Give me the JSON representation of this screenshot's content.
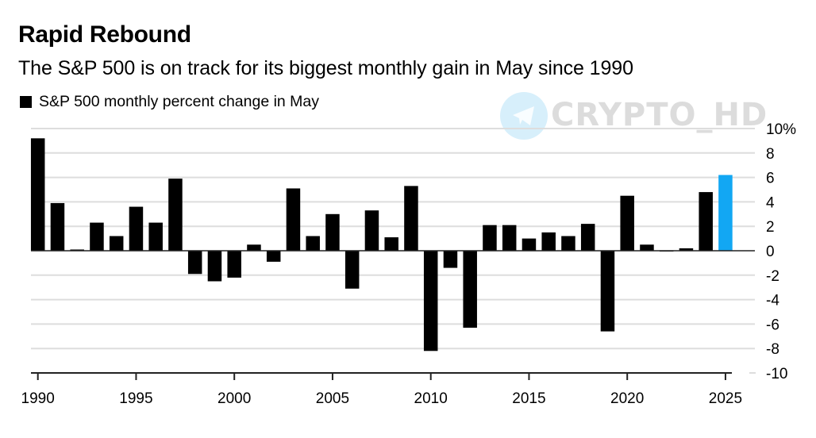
{
  "header": {
    "title": "Rapid Rebound",
    "subtitle": "The S&P 500 is on track for its biggest monthly gain in May since 1990",
    "legend_label": "S&P 500 monthly percent change in May"
  },
  "watermark": {
    "text": "CRYPTO_HD",
    "icon": "telegram-icon"
  },
  "colors": {
    "bar_default": "#000000",
    "bar_highlight": "#12a7f3",
    "grid": "#dddddd",
    "axis": "#222222"
  },
  "chart_data": {
    "type": "bar",
    "title": "Rapid Rebound",
    "subtitle": "The S&P 500 is on track for its biggest monthly gain in May since 1990",
    "legend": [
      {
        "label": "S&P 500 monthly percent change in May",
        "color": "#000000"
      }
    ],
    "legend_position": "top-left",
    "xlabel": "",
    "ylabel": "",
    "ylim": [
      -10,
      10
    ],
    "y_ticks": [
      10,
      8,
      6,
      4,
      2,
      0,
      -2,
      -4,
      -6,
      -8,
      -10
    ],
    "y_tick_labels": [
      "10%",
      "8",
      "6",
      "4",
      "2",
      "0",
      "-2",
      "-4",
      "-6",
      "-8",
      "-10"
    ],
    "y_axis_side": "right",
    "x_ticks": [
      1990,
      1995,
      2000,
      2005,
      2010,
      2015,
      2020,
      2025
    ],
    "x_tick_labels": [
      "1990",
      "1995",
      "2000",
      "2005",
      "2010",
      "2015",
      "2020",
      "2025"
    ],
    "grid": true,
    "highlight_category": 2025,
    "categories": [
      1990,
      1991,
      1992,
      1993,
      1994,
      1995,
      1996,
      1997,
      1998,
      1999,
      2000,
      2001,
      2002,
      2003,
      2004,
      2005,
      2006,
      2007,
      2008,
      2009,
      2010,
      2011,
      2012,
      2013,
      2014,
      2015,
      2016,
      2017,
      2018,
      2019,
      2020,
      2021,
      2022,
      2023,
      2024,
      2025
    ],
    "values": [
      9.2,
      3.9,
      0.1,
      2.3,
      1.2,
      3.6,
      2.3,
      5.9,
      -1.9,
      -2.5,
      -2.2,
      0.5,
      -0.9,
      5.1,
      1.2,
      3.0,
      -3.1,
      3.3,
      1.1,
      5.3,
      -8.2,
      -1.4,
      -6.3,
      2.1,
      2.1,
      1.0,
      1.5,
      1.2,
      2.2,
      -6.6,
      4.5,
      0.5,
      0.0,
      0.2,
      4.8,
      6.2
    ]
  }
}
